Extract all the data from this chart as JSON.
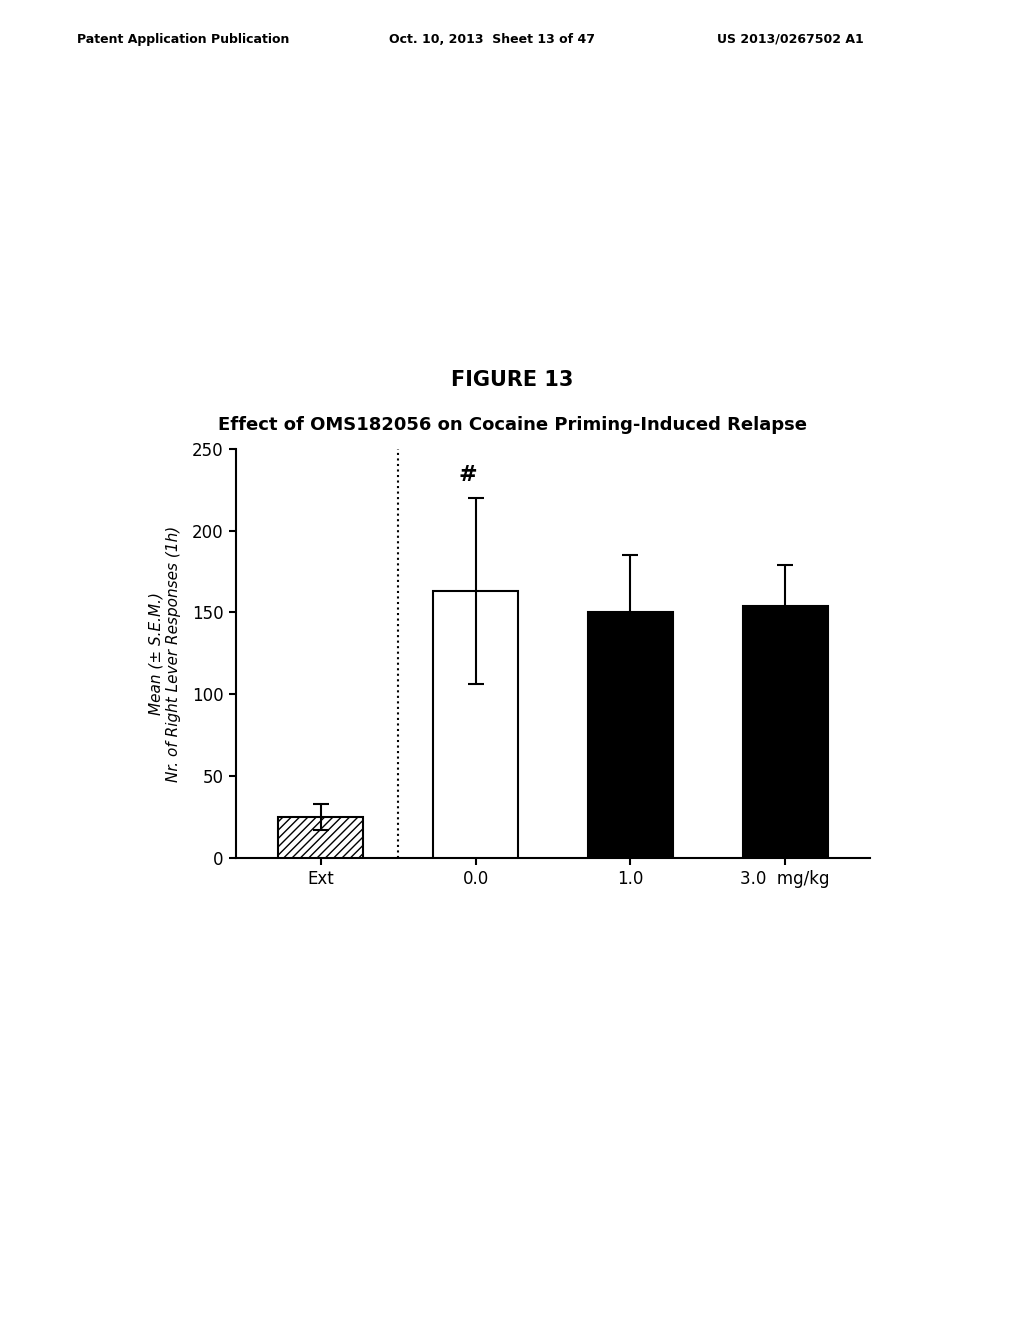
{
  "title": "FIGURE 13",
  "subtitle": "Effect of OMS182056 on Cocaine Priming-Induced Relapse",
  "categories": [
    "Ext",
    "0.0",
    "1.0",
    "3.0  mg/kg"
  ],
  "ylabel_line1": "Mean (± S.E.M.)",
  "ylabel_line2": "Nr. of Right Lever Responses (1h)",
  "bar_values": [
    25,
    163,
    150,
    154
  ],
  "bar_errors": [
    8,
    57,
    35,
    25
  ],
  "bar_colors": [
    "hatch_white",
    "white",
    "black",
    "black"
  ],
  "bar_hatch": [
    true,
    false,
    false,
    false
  ],
  "ylim": [
    0,
    250
  ],
  "yticks": [
    0,
    50,
    100,
    150,
    200,
    250
  ],
  "hash_symbol": "#",
  "background_color": "#ffffff",
  "header_left": "Patent Application Publication",
  "header_mid": "Oct. 10, 2013  Sheet 13 of 47",
  "header_right": "US 2013/0267502 A1"
}
